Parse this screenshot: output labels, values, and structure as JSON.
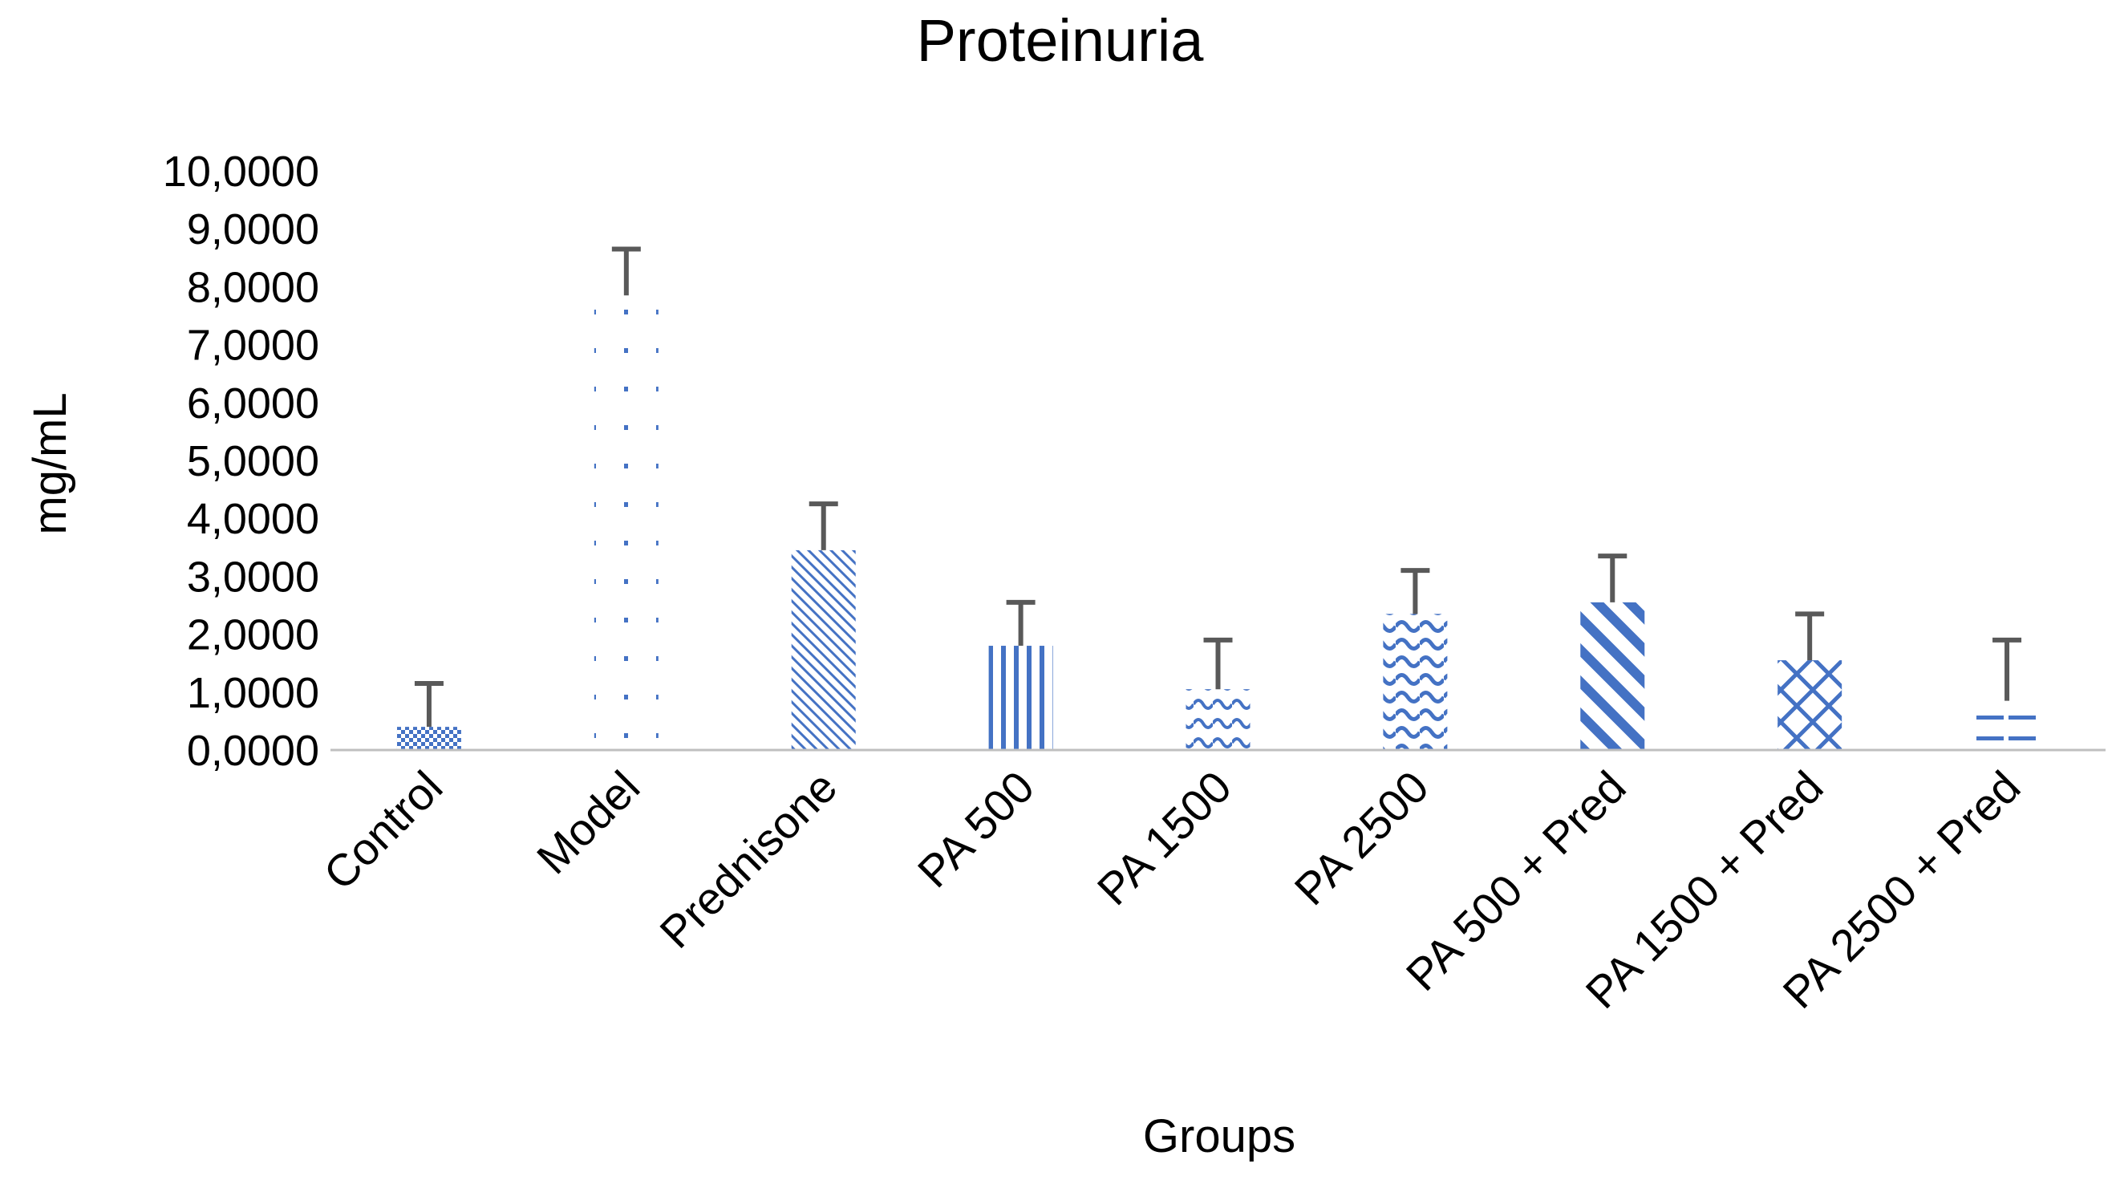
{
  "chart_data": {
    "type": "bar",
    "title": "Proteinuria",
    "xlabel": "Groups",
    "ylabel": "mg/mL",
    "ylim": [
      0,
      10
    ],
    "yticks": [
      "0,0000",
      "1,0000",
      "2,0000",
      "3,0000",
      "4,0000",
      "5,0000",
      "6,0000",
      "7,0000",
      "8,0000",
      "9,0000",
      "10,0000"
    ],
    "categories": [
      "Control",
      "Model",
      "Prednisone",
      "PA 500",
      "PA 1500",
      "PA 2500",
      "PA 500 + Pred",
      "PA 1500 + Pred",
      "PA 2500 + Pred"
    ],
    "values": [
      0.4,
      7.85,
      3.45,
      1.8,
      1.05,
      2.35,
      2.55,
      1.55,
      0.85
    ],
    "error_plus": [
      0.75,
      0.8,
      0.8,
      0.75,
      0.85,
      0.75,
      0.8,
      0.8,
      1.05
    ],
    "bar_color": "#4472C4",
    "error_color": "#595959",
    "grid": false
  }
}
